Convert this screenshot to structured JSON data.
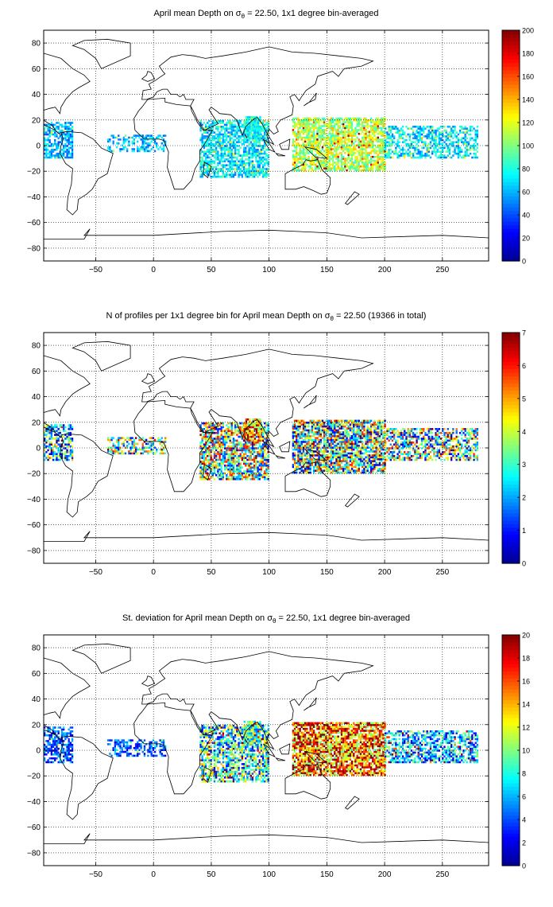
{
  "figure": {
    "background": "#ffffff",
    "colormap": "jet",
    "colormap_stops": [
      "#00008f",
      "#0000ff",
      "#0080ff",
      "#00ffff",
      "#80ff80",
      "#ffff00",
      "#ff8000",
      "#ff0000",
      "#800000"
    ],
    "grid_color": "#000000",
    "coastline_color": "#000000",
    "no_data_color": "#ffffff"
  },
  "chart_data": [
    {
      "type": "heatmap",
      "title": "April mean Depth on σθ = 22.50, 1x1 degree bin-averaged",
      "title_parts": [
        "April mean Depth on σ",
        "θ",
        " = 22.50, 1x1 degree bin-averaged"
      ],
      "x_ticks": [
        -50,
        0,
        50,
        100,
        150,
        200,
        250
      ],
      "y_ticks": [
        80,
        60,
        40,
        20,
        0,
        -20,
        -40,
        -60,
        -80
      ],
      "xlim": [
        -95,
        290
      ],
      "ylim": [
        -90,
        90
      ],
      "grid": true,
      "colorbar": {
        "min": 0,
        "max": 200,
        "ticks": [
          0,
          20,
          40,
          60,
          80,
          100,
          120,
          140,
          160,
          180,
          200
        ]
      },
      "regions": [
        {
          "name": "atlantic-west",
          "lon": [
            -95,
            -70
          ],
          "lat": [
            -10,
            18
          ],
          "level": 0.3,
          "spread": 0.1,
          "density": 0.65
        },
        {
          "name": "atlantic-east",
          "lon": [
            -40,
            10
          ],
          "lat": [
            -5,
            8
          ],
          "level": 0.3,
          "spread": 0.1,
          "density": 0.5
        },
        {
          "name": "indian",
          "lon": [
            40,
            100
          ],
          "lat": [
            -25,
            20
          ],
          "level": 0.35,
          "spread": 0.12,
          "density": 0.7
        },
        {
          "name": "bay-of-bengal",
          "lon": [
            78,
            92
          ],
          "lat": [
            5,
            22
          ],
          "level": 0.38,
          "spread": 0.08,
          "density": 0.85
        },
        {
          "name": "pacific-west",
          "lon": [
            120,
            200
          ],
          "lat": [
            -20,
            22
          ],
          "level": 0.55,
          "spread": 0.15,
          "density": 0.75
        },
        {
          "name": "pacific-east",
          "lon": [
            200,
            280
          ],
          "lat": [
            -10,
            15
          ],
          "level": 0.35,
          "spread": 0.12,
          "density": 0.55
        }
      ]
    },
    {
      "type": "heatmap",
      "title": "N of profiles per 1x1 degree bin for April mean Depth on σθ = 22.50 (19366 in total)",
      "title_parts": [
        "N of profiles per 1x1 degree bin for April mean Depth on σ",
        "θ",
        " = 22.50 (19366 in total)"
      ],
      "x_ticks": [
        -50,
        0,
        50,
        100,
        150,
        200,
        250
      ],
      "y_ticks": [
        80,
        60,
        40,
        20,
        0,
        -20,
        -40,
        -60,
        -80
      ],
      "xlim": [
        -95,
        290
      ],
      "ylim": [
        -90,
        90
      ],
      "grid": true,
      "colorbar": {
        "min": 0,
        "max": 7,
        "ticks": [
          0,
          1,
          2,
          3,
          4,
          5,
          6,
          7
        ]
      },
      "regions": [
        {
          "name": "atlantic-west",
          "lon": [
            -95,
            -70
          ],
          "lat": [
            -10,
            18
          ],
          "level": 0.35,
          "spread": 0.35,
          "density": 0.65
        },
        {
          "name": "atlantic-east",
          "lon": [
            -40,
            10
          ],
          "lat": [
            -5,
            8
          ],
          "level": 0.45,
          "spread": 0.35,
          "density": 0.55
        },
        {
          "name": "indian",
          "lon": [
            40,
            100
          ],
          "lat": [
            -25,
            20
          ],
          "level": 0.5,
          "spread": 0.4,
          "density": 0.75
        },
        {
          "name": "bay-of-bengal",
          "lon": [
            78,
            92
          ],
          "lat": [
            5,
            22
          ],
          "level": 0.75,
          "spread": 0.3,
          "density": 0.85
        },
        {
          "name": "pacific-west",
          "lon": [
            120,
            200
          ],
          "lat": [
            -20,
            22
          ],
          "level": 0.45,
          "spread": 0.4,
          "density": 0.8
        },
        {
          "name": "pacific-east",
          "lon": [
            200,
            280
          ],
          "lat": [
            -10,
            15
          ],
          "level": 0.45,
          "spread": 0.4,
          "density": 0.6
        }
      ]
    },
    {
      "type": "heatmap",
      "title": "St. deviation for April mean Depth on σθ = 22.50, 1x1 degree bin-averaged",
      "title_parts": [
        "St. deviation for April mean Depth on σ",
        "θ",
        " = 22.50, 1x1 degree bin-averaged"
      ],
      "x_ticks": [
        -50,
        0,
        50,
        100,
        150,
        200,
        250
      ],
      "y_ticks": [
        80,
        60,
        40,
        20,
        0,
        -20,
        -40,
        -60,
        -80
      ],
      "xlim": [
        -95,
        290
      ],
      "ylim": [
        -90,
        90
      ],
      "grid": true,
      "colorbar": {
        "min": 0,
        "max": 20,
        "ticks": [
          0,
          2,
          4,
          6,
          8,
          10,
          12,
          14,
          16,
          18,
          20
        ]
      },
      "regions": [
        {
          "name": "atlantic-west",
          "lon": [
            -95,
            -70
          ],
          "lat": [
            -10,
            18
          ],
          "level": 0.2,
          "spread": 0.15,
          "density": 0.65
        },
        {
          "name": "atlantic-east",
          "lon": [
            -40,
            10
          ],
          "lat": [
            -5,
            8
          ],
          "level": 0.2,
          "spread": 0.15,
          "density": 0.5
        },
        {
          "name": "indian",
          "lon": [
            40,
            100
          ],
          "lat": [
            -25,
            20
          ],
          "level": 0.4,
          "spread": 0.3,
          "density": 0.7
        },
        {
          "name": "bay-of-bengal",
          "lon": [
            78,
            92
          ],
          "lat": [
            5,
            22
          ],
          "level": 0.45,
          "spread": 0.25,
          "density": 0.85
        },
        {
          "name": "pacific-west",
          "lon": [
            120,
            200
          ],
          "lat": [
            -20,
            22
          ],
          "level": 0.75,
          "spread": 0.3,
          "density": 0.8
        },
        {
          "name": "pacific-east",
          "lon": [
            200,
            280
          ],
          "lat": [
            -10,
            15
          ],
          "level": 0.3,
          "spread": 0.25,
          "density": 0.6
        }
      ]
    }
  ]
}
